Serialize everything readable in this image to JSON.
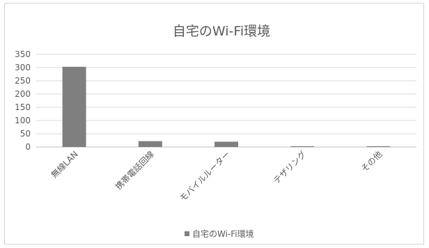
{
  "chart_data": {
    "type": "bar",
    "title": "自宅のWi-Fi環境",
    "categories": [
      "無線LAN",
      "携帯電話回線",
      "モバイルルーター",
      "テザリング",
      "その他"
    ],
    "series": [
      {
        "name": "自宅のWi-Fi環境",
        "values": [
          303,
          22,
          20,
          3,
          3
        ]
      }
    ],
    "ylim": [
      0,
      350
    ],
    "yticks": [
      0,
      50,
      100,
      150,
      200,
      250,
      300,
      350
    ],
    "grid": true,
    "legend": "bottom",
    "bar_color": "#7f7f7f"
  }
}
